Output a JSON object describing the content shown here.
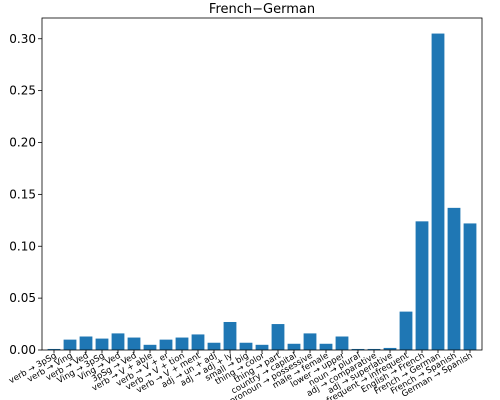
{
  "chart_data": {
    "type": "bar",
    "title": "French−German",
    "xlabel": "",
    "ylabel": "",
    "ylim": [
      0,
      0.32
    ],
    "yticks": [
      "0.00",
      "0.05",
      "0.10",
      "0.15",
      "0.20",
      "0.25",
      "0.30"
    ],
    "grid": false,
    "bar_color": "#1f77b4",
    "categories": [
      "verb → 3pSg",
      "verb → Ving",
      "verb → Ved",
      "Ving → 3pSg",
      "Ving → Ved",
      "3pSg → Ved",
      "verb → V + able",
      "verb → V + er",
      "verb → V + tion",
      "verb → V + ment",
      "adj → un + adj",
      "adj → adj + ly",
      "small → big",
      "thing → color",
      "thing → part",
      "country → capital",
      "pronoun → possessive",
      "male → female",
      "lower → upper",
      "noun → plural",
      "adj → comparative",
      "adj → superlative",
      "frequent → infrequent",
      "English → French",
      "French → German",
      "French → Spanish",
      "German → Spanish"
    ],
    "values": [
      0.001,
      0.01,
      0.013,
      0.011,
      0.016,
      0.012,
      0.005,
      0.01,
      0.012,
      0.015,
      0.007,
      0.027,
      0.007,
      0.005,
      0.025,
      0.006,
      0.016,
      0.006,
      0.013,
      0.001,
      0.001,
      0.002,
      0.037,
      0.124,
      0.305,
      0.137,
      0.122
    ]
  }
}
